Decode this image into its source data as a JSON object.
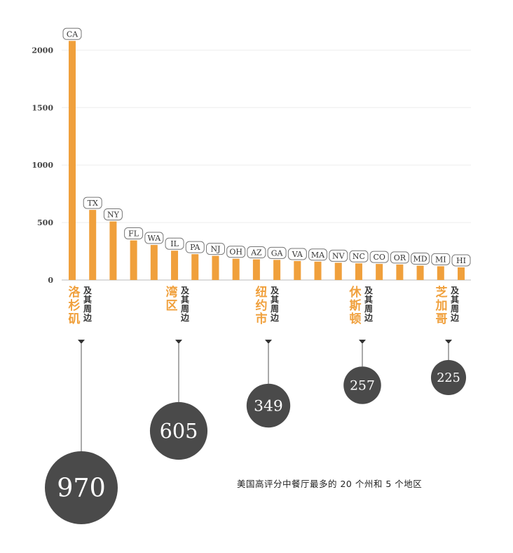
{
  "chart_data": [
    {
      "type": "bar",
      "ylim": [
        0,
        2100
      ],
      "yticks": [
        0,
        500,
        1000,
        1500,
        2000
      ],
      "grid": true,
      "bar_color": "#f0a03c",
      "categories": [
        "CA",
        "TX",
        "NY",
        "FL",
        "WA",
        "IL",
        "PA",
        "NJ",
        "OH",
        "AZ",
        "GA",
        "VA",
        "MA",
        "NV",
        "NC",
        "CO",
        "OR",
        "MD",
        "MI",
        "HI"
      ],
      "values": [
        2080,
        610,
        510,
        345,
        305,
        255,
        225,
        210,
        185,
        180,
        175,
        165,
        160,
        150,
        145,
        140,
        135,
        125,
        120,
        110
      ]
    },
    {
      "type": "bubble",
      "label_color": "#f0a03c",
      "bubble_color": "#4a4a4a",
      "regions": [
        {
          "name": "洛杉矶",
          "sub": "及其周边",
          "value": 970
        },
        {
          "name": "湾区",
          "sub": "及其周边",
          "value": 605
        },
        {
          "name": "纽约市",
          "sub": "及其周边",
          "value": 349
        },
        {
          "name": "休斯顿",
          "sub": "及其周边",
          "value": 257
        },
        {
          "name": "芝加哥",
          "sub": "及其周边",
          "value": 225
        }
      ]
    }
  ],
  "caption": "美国高评分中餐厅最多的 20 个州和 5 个地区"
}
